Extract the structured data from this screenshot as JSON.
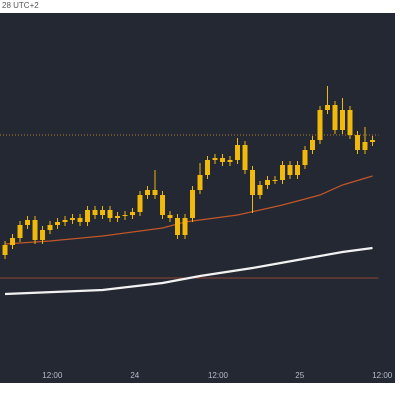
{
  "chart_data": {
    "type": "candlestick",
    "header": "28 UTC+2",
    "open": [
      128,
      138,
      145,
      158,
      163,
      143,
      153,
      158,
      161,
      163,
      165,
      161,
      173,
      168,
      173,
      165,
      167,
      168,
      171,
      188,
      193,
      188,
      168,
      165,
      148,
      165,
      193,
      208,
      223,
      225,
      221,
      223,
      238,
      213,
      188,
      198,
      203,
      203,
      218,
      208,
      218,
      233,
      243,
      273,
      278,
      253,
      273,
      248,
      233,
      241
    ],
    "high": [
      142,
      149,
      162,
      167,
      167,
      157,
      162,
      165,
      167,
      169,
      169,
      177,
      177,
      177,
      177,
      171,
      172,
      175,
      192,
      197,
      213,
      192,
      172,
      169,
      169,
      197,
      220,
      227,
      229,
      229,
      227,
      245,
      242,
      217,
      202,
      207,
      207,
      222,
      222,
      222,
      237,
      247,
      277,
      297,
      282,
      285,
      277,
      252,
      256,
      247
    ],
    "low": [
      124,
      134,
      141,
      154,
      139,
      139,
      149,
      154,
      157,
      159,
      157,
      157,
      164,
      164,
      161,
      161,
      163,
      164,
      167,
      184,
      184,
      164,
      161,
      144,
      144,
      161,
      189,
      204,
      219,
      217,
      217,
      219,
      209,
      170,
      184,
      194,
      199,
      199,
      204,
      204,
      214,
      229,
      239,
      269,
      249,
      249,
      244,
      229,
      229,
      237
    ],
    "close": [
      138,
      145,
      158,
      163,
      143,
      153,
      158,
      161,
      163,
      165,
      161,
      173,
      168,
      173,
      165,
      167,
      168,
      171,
      188,
      193,
      188,
      168,
      165,
      148,
      165,
      193,
      208,
      223,
      225,
      221,
      223,
      238,
      213,
      188,
      198,
      203,
      203,
      218,
      208,
      218,
      233,
      243,
      273,
      278,
      253,
      273,
      248,
      233,
      241,
      243
    ],
    "color": "#f0b90b",
    "lines": [
      {
        "color": "#c0562a",
        "x": [
          0,
          6,
          13,
          21,
          24,
          31,
          37,
          42,
          45,
          49
        ],
        "values": [
          139,
          142,
          147,
          155,
          161,
          168,
          178,
          188,
          198,
          207
        ]
      },
      {
        "color": "#f2f2f2",
        "x": [
          0,
          13,
          21,
          26,
          33,
          39,
          45,
          49
        ],
        "values": [
          89,
          93,
          100,
          107,
          115,
          123,
          131,
          135
        ]
      }
    ],
    "levels": [
      {
        "value": 248,
        "color": "#b07a2a",
        "style": "dotted"
      },
      {
        "value": 105,
        "color": "#8a4434",
        "style": "solid"
      }
    ],
    "xlim": [
      -0.67,
      52
    ],
    "ylim": [
      0,
      370
    ],
    "xticks": [
      {
        "value": 6.3,
        "label": "12:00"
      },
      {
        "value": 17.3,
        "label": "24"
      },
      {
        "value": 28.4,
        "label": "12:00"
      },
      {
        "value": 39.3,
        "label": "25"
      },
      {
        "value": 50.3,
        "label": "12:00"
      }
    ]
  }
}
